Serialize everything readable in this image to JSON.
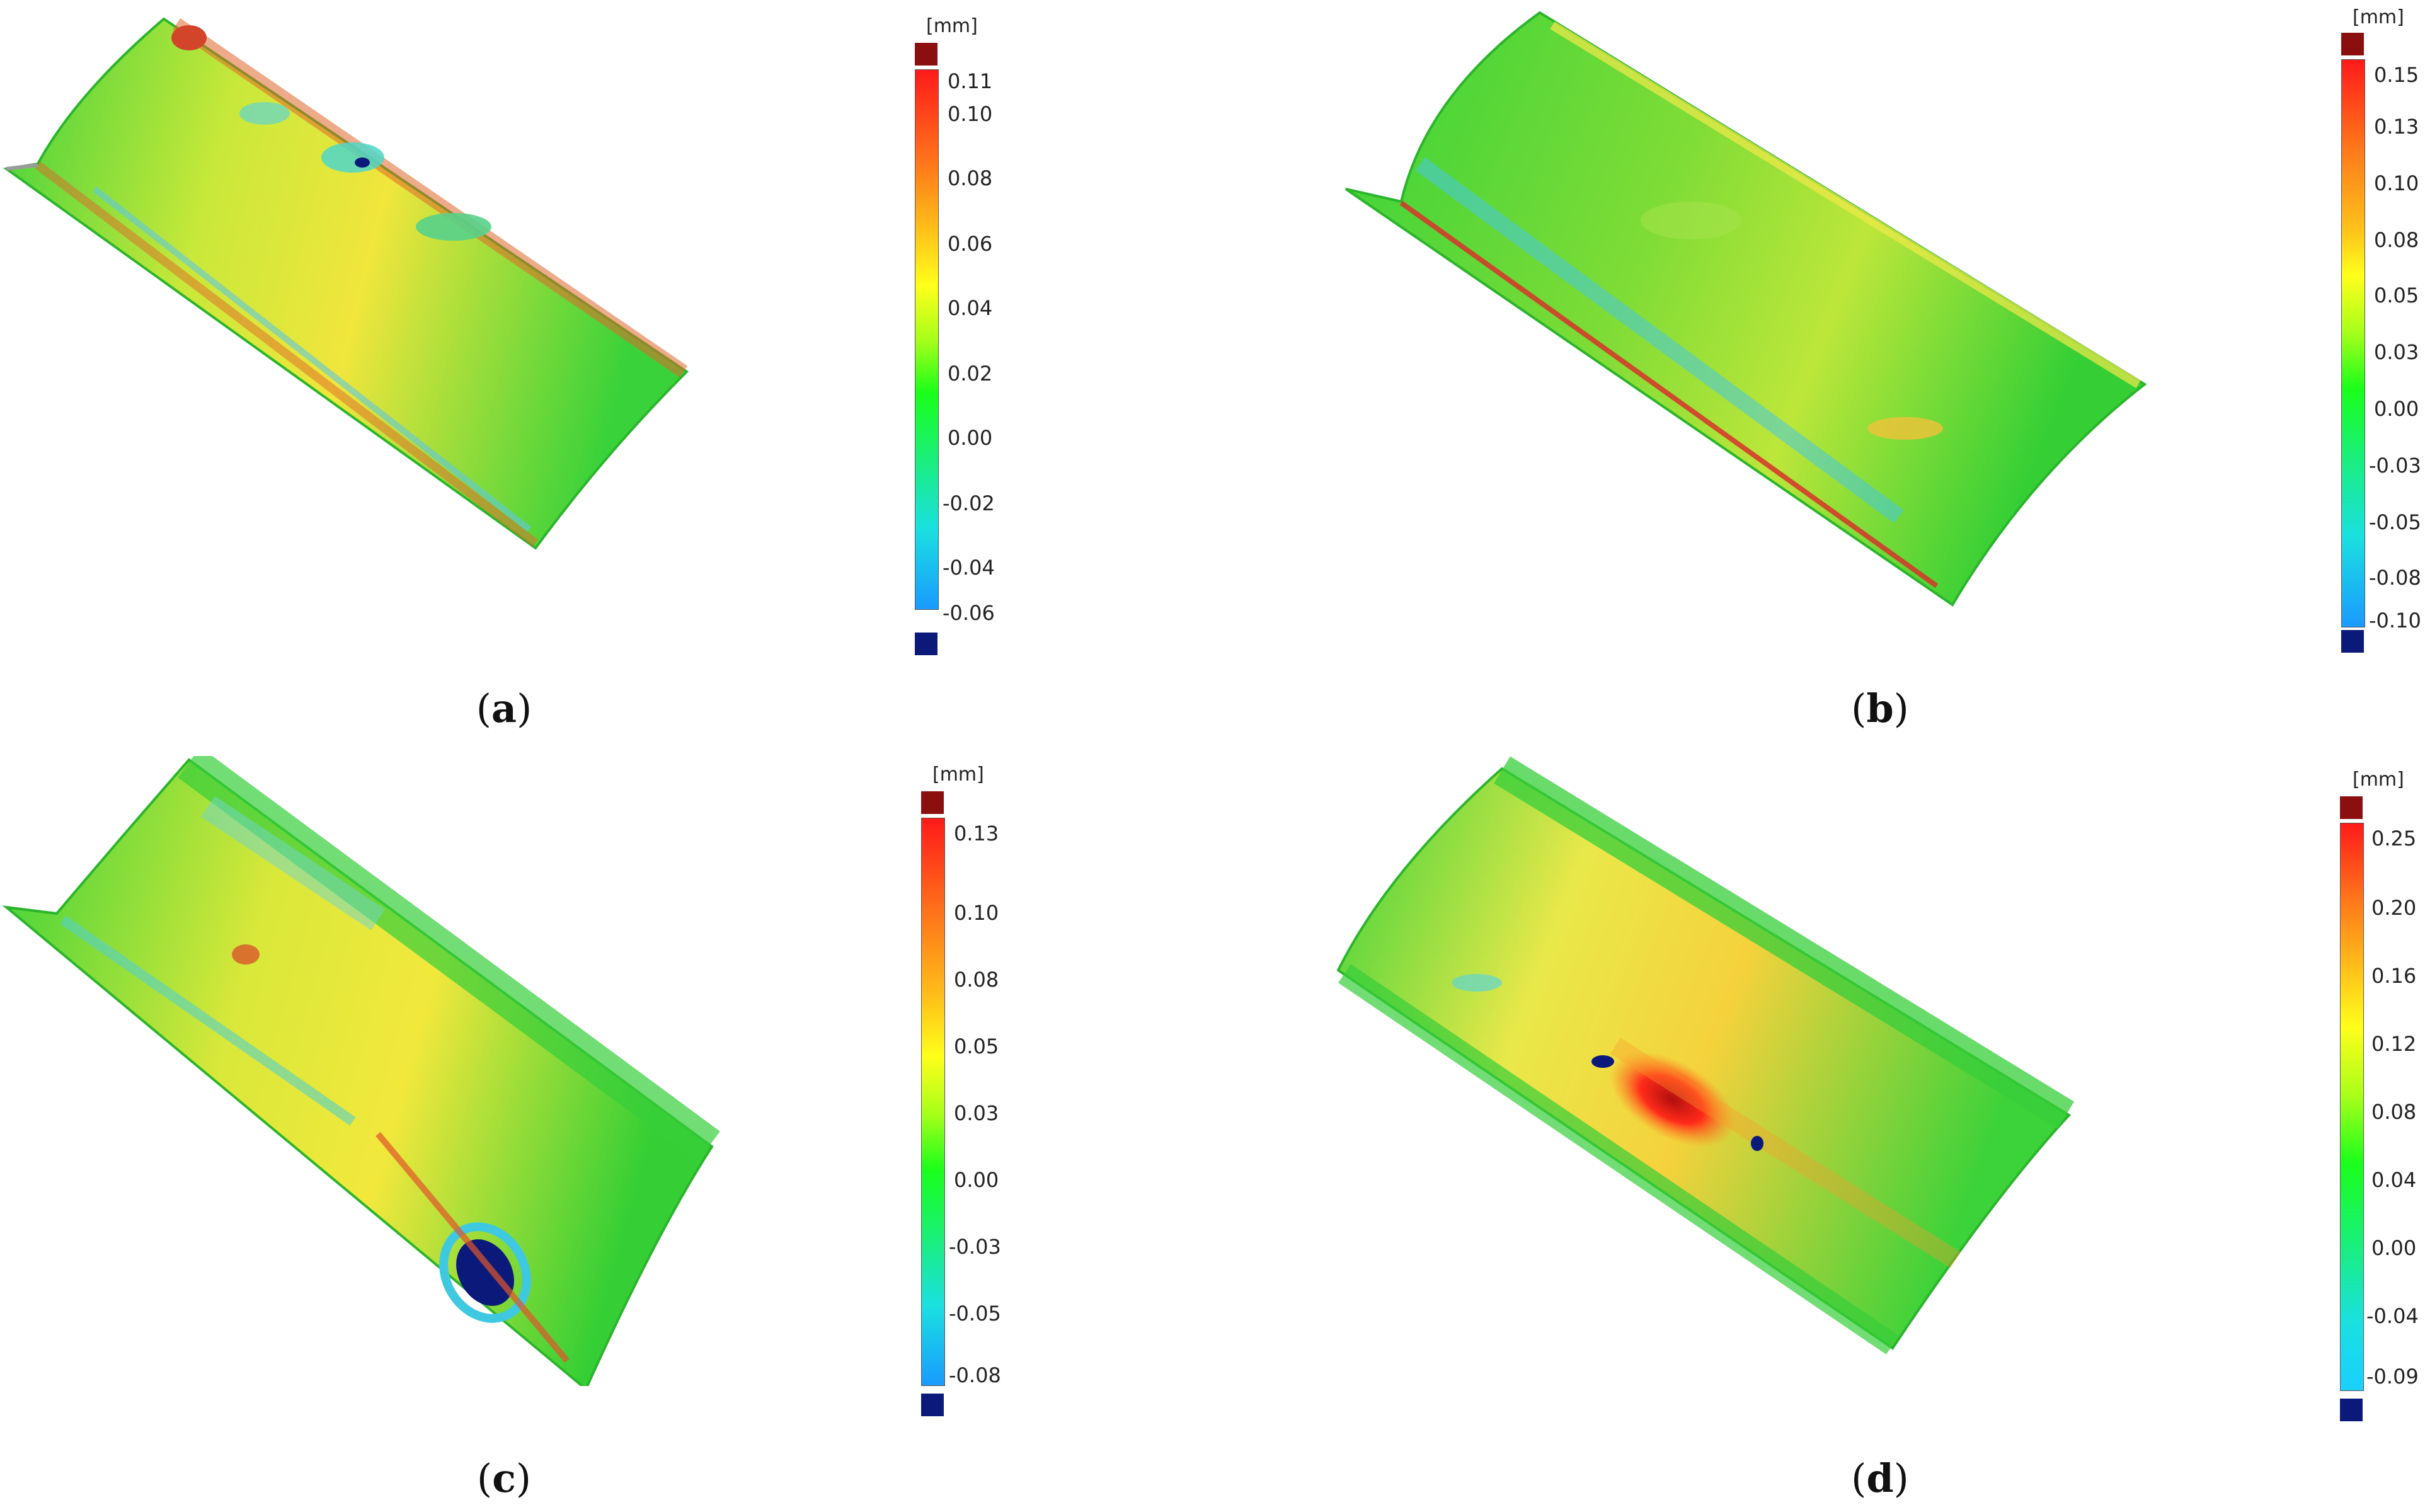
{
  "colors": {
    "over_cap": "#8b0f0f",
    "under_cap": "#0b1a7a"
  },
  "panels": [
    {
      "id": "a",
      "caption_open": "(",
      "caption_letter": "a",
      "caption_close": ")",
      "unit": "[mm]",
      "ticks": [
        "0.11",
        "0.10",
        "0.08",
        "0.06",
        "0.04",
        "0.02",
        "0.00",
        "-0.02",
        "-0.04",
        "-0.06"
      ]
    },
    {
      "id": "b",
      "caption_open": "(",
      "caption_letter": "b",
      "caption_close": ")",
      "unit": "[mm]",
      "ticks": [
        "0.15",
        "0.13",
        "0.10",
        "0.08",
        "0.05",
        "0.03",
        "0.00",
        "-0.03",
        "-0.05",
        "-0.08",
        "-0.10"
      ]
    },
    {
      "id": "c",
      "caption_open": "(",
      "caption_letter": "c",
      "caption_close": ")",
      "unit": "[mm]",
      "ticks": [
        "0.13",
        "0.10",
        "0.08",
        "0.05",
        "0.03",
        "0.00",
        "-0.03",
        "-0.05",
        "-0.08"
      ]
    },
    {
      "id": "d",
      "caption_open": "(",
      "caption_letter": "d",
      "caption_close": ")",
      "unit": "[mm]",
      "ticks": [
        "0.25",
        "0.20",
        "0.16",
        "0.12",
        "0.08",
        "0.04",
        "0.00",
        "-0.04",
        "-0.09"
      ]
    }
  ]
}
